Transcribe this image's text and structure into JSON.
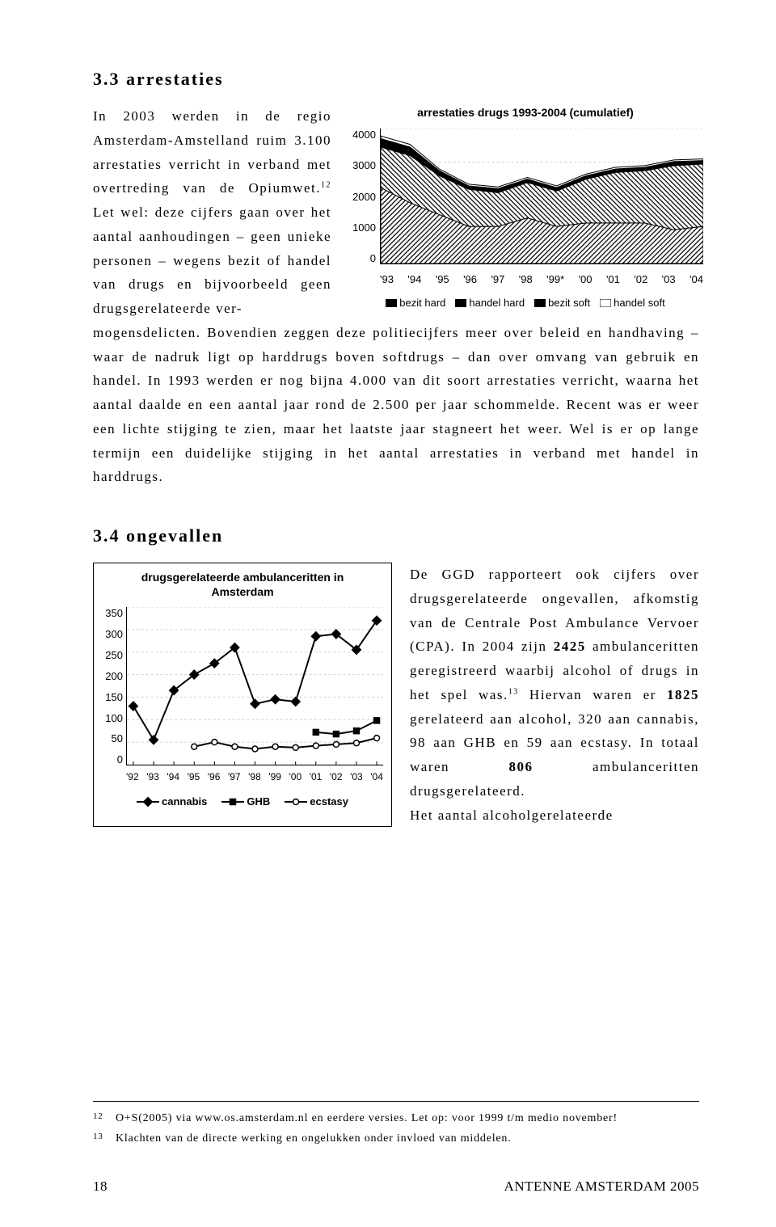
{
  "section33": {
    "heading": "3.3     arrestaties",
    "left_text": "In 2003 werden in de regio Amsterdam-Amstelland ruim 3.100 arrestaties verricht in verband met overtreding van de Opiumwet.12 Let wel: deze cijfers gaan over het aantal aanhoudingen – geen unieke personen – wegens bezit of handel van drugs en bijvoorbeeld geen drugsgerelateerde ver-",
    "continuation": "mogensdelicten. Bovendien zeggen deze politiecijfers meer over beleid en handhaving – waar de nadruk ligt op harddrugs boven softdrugs – dan over omvang van gebruik en handel. In 1993 werden er nog bijna 4.000 van dit soort arrestaties verricht, waarna het aantal daalde en een aantal jaar rond de 2.500 per jaar schommelde. Recent was er weer een lichte stijging te zien, maar het laatste jaar stagneert het weer. Wel is er op lange termijn een duidelijke stijging in het aantal arrestaties in verband met handel in harddrugs."
  },
  "section34": {
    "heading": "3.4     ongevallen",
    "right_text": "De GGD rapporteert ook cijfers over drugsgerelateerde ongevallen, afkomstig van de Centrale Post Ambulance Vervoer (CPA). In 2004 zijn 2425 ambulanceritten geregistreerd waarbij alcohol of drugs in het spel was.13 Hiervan waren er 1825 gerelateerd aan alcohol, 320 aan cannabis, 98 aan GHB en 59 aan ecstasy. In totaal waren 806 ambulanceritten drugsgerelateerd.",
    "right_text2": "Het aantal alcoholgerelateerde"
  },
  "chart33": {
    "type": "stacked_area",
    "title": "arrestaties drugs 1993-2004 (cumulatief)",
    "xlabels": [
      "'93",
      "'94",
      "'95",
      "'96",
      "'97",
      "'98",
      "'99*",
      "'00",
      "'01",
      "'02",
      "'03",
      "'04"
    ],
    "yticks": [
      0,
      1000,
      2000,
      3000,
      4000
    ],
    "ylim": [
      0,
      4000
    ],
    "series": [
      {
        "name": "bezit hard",
        "fill": "diag1",
        "color": "#000000",
        "values": [
          2250,
          1800,
          1450,
          1100,
          1100,
          1350,
          1100,
          1200,
          1200,
          1200,
          1000,
          1100
        ]
      },
      {
        "name": "handel hard",
        "fill": "diag2",
        "color": "#000000",
        "values": [
          1200,
          1400,
          1150,
          1100,
          1000,
          1050,
          1050,
          1300,
          1500,
          1550,
          1900,
          1850
        ]
      },
      {
        "name": "bezit soft",
        "fill": "solid_black",
        "color": "#000000",
        "values": [
          250,
          250,
          150,
          100,
          120,
          100,
          100,
          100,
          100,
          100,
          120,
          100
        ]
      },
      {
        "name": "handel soft",
        "fill": "white",
        "color": "#000000",
        "values": [
          80,
          80,
          50,
          50,
          50,
          50,
          50,
          50,
          50,
          50,
          50,
          50
        ]
      }
    ],
    "grid_color": "#cccccc",
    "background": "#ffffff",
    "title_fontsize": 14,
    "label_fontsize": 13
  },
  "chart34": {
    "type": "line",
    "title_line1": "drugsgerelateerde ambulanceritten in",
    "title_line2": "Amsterdam",
    "xlabels": [
      "'92",
      "'93",
      "'94",
      "'95",
      "'96",
      "'97",
      "'98",
      "'99",
      "'00",
      "'01",
      "'02",
      "'03",
      "'04"
    ],
    "yticks": [
      0,
      50,
      100,
      150,
      200,
      250,
      300,
      350
    ],
    "ylim": [
      0,
      350
    ],
    "series": [
      {
        "name": "cannabis",
        "marker": "diamond",
        "fill": "#000000",
        "line": "#000000",
        "values": [
          130,
          55,
          165,
          200,
          225,
          260,
          135,
          145,
          140,
          285,
          290,
          255,
          320
        ]
      },
      {
        "name": "GHB",
        "marker": "square",
        "fill": "#000000",
        "line": "#000000",
        "values": [
          null,
          null,
          null,
          null,
          null,
          null,
          null,
          null,
          null,
          72,
          68,
          75,
          98
        ]
      },
      {
        "name": "ecstasy",
        "marker": "circle",
        "fill": "#ffffff",
        "line": "#000000",
        "values": [
          null,
          null,
          null,
          40,
          50,
          40,
          35,
          40,
          38,
          42,
          45,
          48,
          59
        ]
      }
    ],
    "grid_color": "#d0d0d0",
    "background": "#ffffff",
    "line_width": 2,
    "marker_size": 7,
    "title_fontsize": 14,
    "label_fontsize": 13
  },
  "footnotes": {
    "f12_num": "12",
    "f12": "O+S(2005) via www.os.amsterdam.nl en eerdere versies. Let op: voor 1999 t/m medio november!",
    "f13_num": "13",
    "f13": "Klachten van de directe werking en ongelukken onder invloed van middelen."
  },
  "footer": {
    "page_number": "18",
    "source": "ANTENNE AMSTERDAM 2005"
  },
  "colors": {
    "text": "#000000",
    "bg": "#ffffff",
    "grid": "#d0d0d0"
  }
}
